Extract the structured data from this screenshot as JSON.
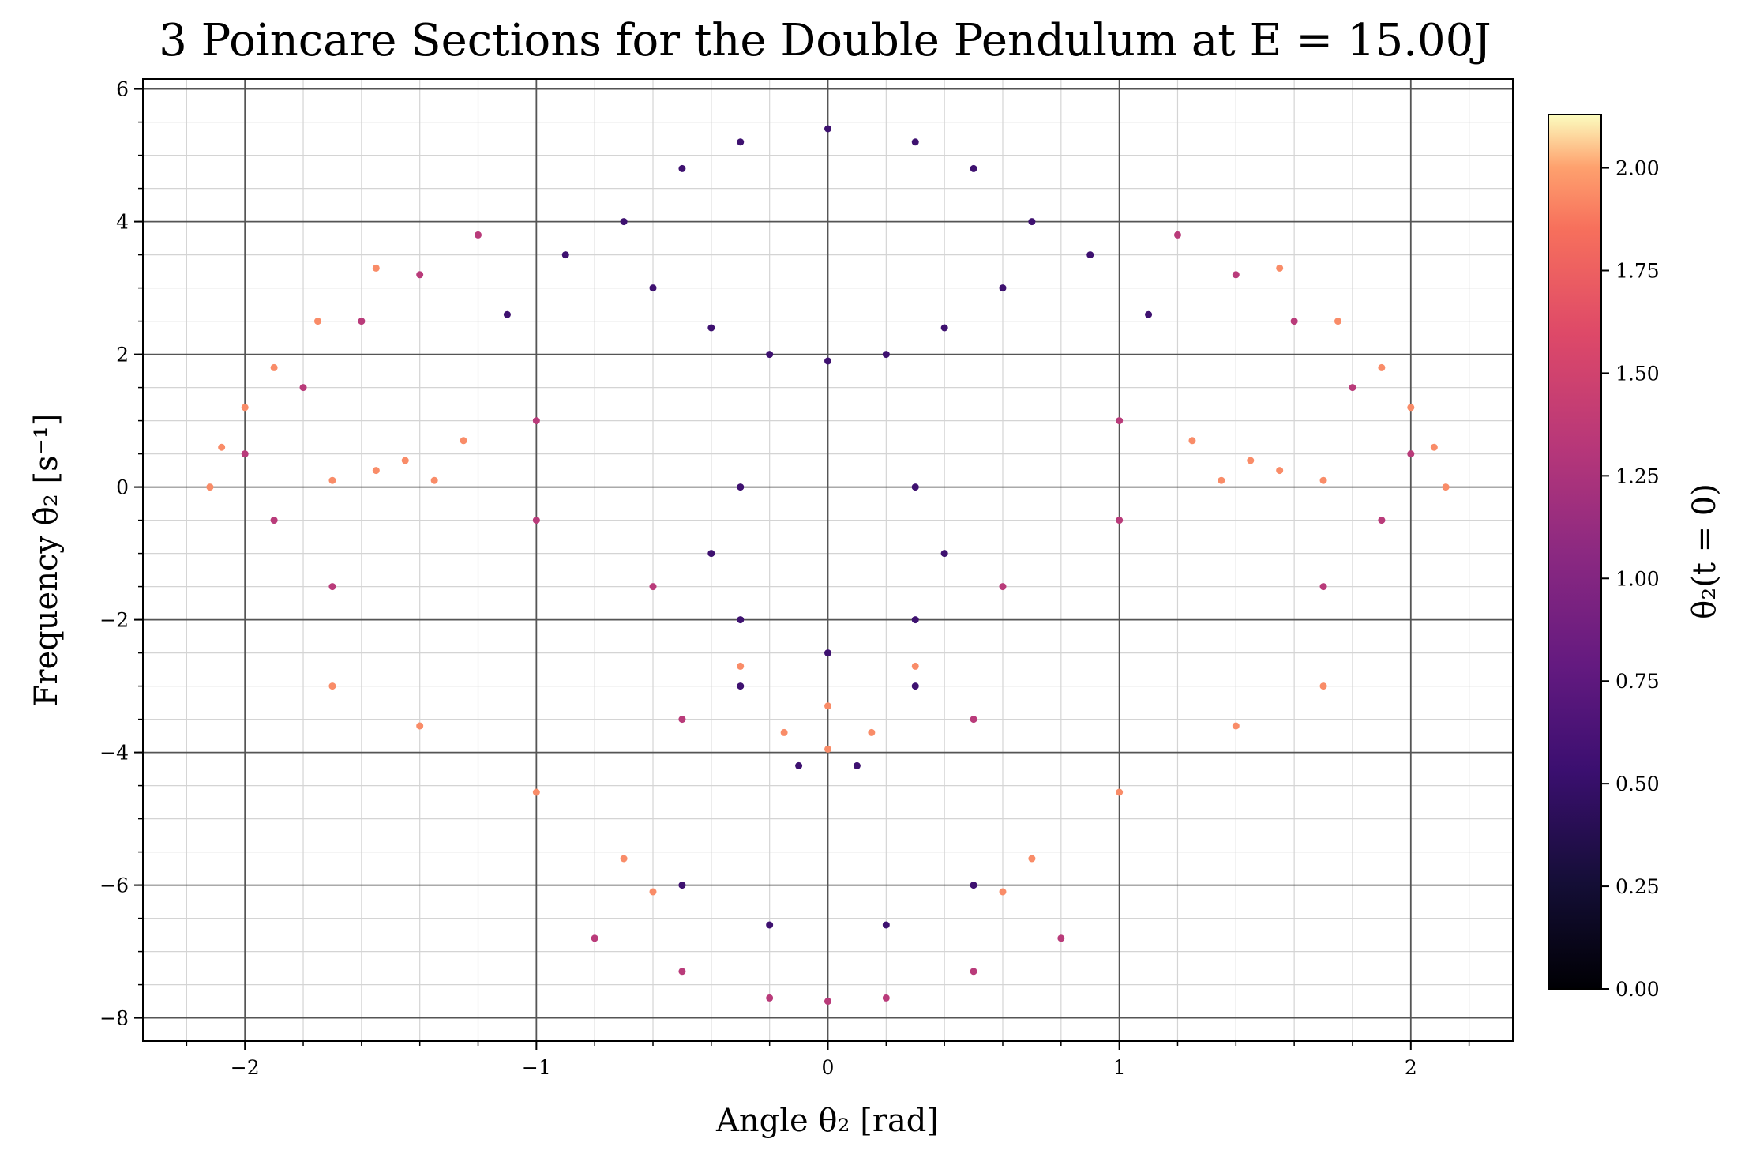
{
  "chart_data": {
    "type": "scatter",
    "title": "3 Poincare Sections for the Double Pendulum at E = 15.00J",
    "xlabel": "Angle θ₂ [rad]",
    "ylabel": "Frequency θ̇₂ [s⁻¹]",
    "xlim": [
      -2.35,
      2.35
    ],
    "ylim": [
      -8.35,
      6.15
    ],
    "x_ticks": [
      {
        "value": -2,
        "label": "−2"
      },
      {
        "value": -1,
        "label": "−1"
      },
      {
        "value": 0,
        "label": "0"
      },
      {
        "value": 1,
        "label": "1"
      },
      {
        "value": 2,
        "label": "2"
      }
    ],
    "y_ticks": [
      {
        "value": -8,
        "label": "−8"
      },
      {
        "value": -6,
        "label": "−6"
      },
      {
        "value": -4,
        "label": "−4"
      },
      {
        "value": -2,
        "label": "−2"
      },
      {
        "value": 0,
        "label": "0"
      },
      {
        "value": 2,
        "label": "2"
      },
      {
        "value": 4,
        "label": "4"
      },
      {
        "value": 6,
        "label": "6"
      }
    ],
    "grid": true,
    "minor_grid": true,
    "colormap": "magma",
    "colorbar": {
      "label": "θ₂(t = 0)",
      "range": [
        0,
        2.13
      ],
      "ticks": [
        {
          "value": 0.0,
          "label": "0.00"
        },
        {
          "value": 0.25,
          "label": "0.25"
        },
        {
          "value": 0.5,
          "label": "0.50"
        },
        {
          "value": 0.75,
          "label": "0.75"
        },
        {
          "value": 1.0,
          "label": "1.00"
        },
        {
          "value": 1.25,
          "label": "1.25"
        },
        {
          "value": 1.5,
          "label": "1.50"
        },
        {
          "value": 1.75,
          "label": "1.75"
        },
        {
          "value": 2.0,
          "label": "2.00"
        }
      ]
    },
    "series": [
      {
        "initial_theta2": 0.6,
        "color": "#3e1170",
        "description_points": [
          [
            0.0,
            1.9
          ],
          [
            -0.2,
            2.0
          ],
          [
            0.2,
            2.0
          ],
          [
            -0.4,
            2.4
          ],
          [
            0.4,
            2.4
          ],
          [
            -0.6,
            3.0
          ],
          [
            0.6,
            3.0
          ],
          [
            -0.7,
            4.0
          ],
          [
            0.7,
            4.0
          ],
          [
            -0.5,
            4.8
          ],
          [
            0.5,
            4.8
          ],
          [
            -0.3,
            5.2
          ],
          [
            0.3,
            5.2
          ],
          [
            0.0,
            5.4
          ],
          [
            -0.9,
            3.5
          ],
          [
            0.9,
            3.5
          ],
          [
            -1.1,
            2.6
          ],
          [
            1.1,
            2.6
          ],
          [
            -0.3,
            0.0
          ],
          [
            0.3,
            0.0
          ],
          [
            -0.4,
            -1.0
          ],
          [
            0.4,
            -1.0
          ],
          [
            -0.3,
            -2.0
          ],
          [
            0.3,
            -2.0
          ],
          [
            0.0,
            -2.5
          ],
          [
            -0.3,
            -3.0
          ],
          [
            0.3,
            -3.0
          ],
          [
            -0.1,
            -4.2
          ],
          [
            0.1,
            -4.2
          ],
          [
            -0.5,
            -6.0
          ],
          [
            0.5,
            -6.0
          ],
          [
            -0.2,
            -6.6
          ],
          [
            0.2,
            -6.6
          ]
        ]
      },
      {
        "initial_theta2": 1.1,
        "color": "#b93b7a",
        "description_points": [
          [
            -2.0,
            0.5
          ],
          [
            2.0,
            0.5
          ],
          [
            -1.8,
            1.5
          ],
          [
            1.8,
            1.5
          ],
          [
            -1.6,
            2.5
          ],
          [
            1.6,
            2.5
          ],
          [
            -1.4,
            3.2
          ],
          [
            1.4,
            3.2
          ],
          [
            -1.2,
            3.8
          ],
          [
            1.2,
            3.8
          ],
          [
            -1.9,
            -0.5
          ],
          [
            1.9,
            -0.5
          ],
          [
            -1.7,
            -1.5
          ],
          [
            1.7,
            -1.5
          ],
          [
            -1.0,
            1.0
          ],
          [
            1.0,
            1.0
          ],
          [
            -1.0,
            -0.5
          ],
          [
            1.0,
            -0.5
          ],
          [
            -0.6,
            -1.5
          ],
          [
            0.6,
            -1.5
          ],
          [
            -0.5,
            -3.5
          ],
          [
            0.5,
            -3.5
          ],
          [
            -0.2,
            -7.7
          ],
          [
            0.2,
            -7.7
          ],
          [
            -0.5,
            -7.3
          ],
          [
            0.5,
            -7.3
          ],
          [
            -0.8,
            -6.8
          ],
          [
            0.8,
            -6.8
          ],
          [
            0.0,
            -7.75
          ]
        ]
      },
      {
        "initial_theta2": 1.6,
        "color": "#f98c68",
        "description_points": [
          [
            -2.12,
            0.0
          ],
          [
            -2.08,
            0.6
          ],
          [
            -2.0,
            1.2
          ],
          [
            -1.9,
            1.8
          ],
          [
            -1.75,
            2.5
          ],
          [
            -1.55,
            3.3
          ],
          [
            2.12,
            0.0
          ],
          [
            2.08,
            0.6
          ],
          [
            2.0,
            1.2
          ],
          [
            1.9,
            1.8
          ],
          [
            1.75,
            2.5
          ],
          [
            1.55,
            3.3
          ],
          [
            -1.7,
            -3.0
          ],
          [
            -1.4,
            -3.6
          ],
          [
            -1.0,
            -4.6
          ],
          [
            -0.7,
            -5.6
          ],
          [
            -0.6,
            -6.1
          ],
          [
            1.7,
            -3.0
          ],
          [
            1.4,
            -3.6
          ],
          [
            1.0,
            -4.6
          ],
          [
            0.7,
            -5.6
          ],
          [
            0.6,
            -6.1
          ],
          [
            -1.7,
            0.1
          ],
          [
            -1.45,
            0.4
          ],
          [
            -1.25,
            0.7
          ],
          [
            -1.35,
            0.1
          ],
          [
            -1.55,
            0.25
          ],
          [
            1.7,
            0.1
          ],
          [
            1.45,
            0.4
          ],
          [
            1.25,
            0.7
          ],
          [
            1.35,
            0.1
          ],
          [
            1.55,
            0.25
          ],
          [
            -0.3,
            -2.7
          ],
          [
            0.3,
            -2.7
          ],
          [
            0.0,
            -3.3
          ],
          [
            -0.15,
            -3.7
          ],
          [
            0.15,
            -3.7
          ],
          [
            0.0,
            -3.95
          ]
        ]
      }
    ]
  }
}
